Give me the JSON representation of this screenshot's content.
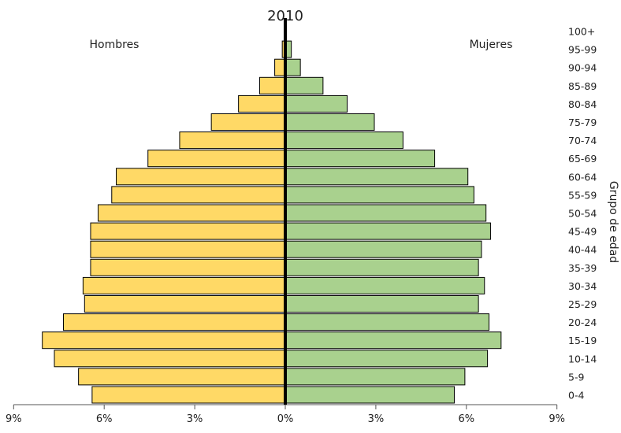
{
  "chart_data": {
    "type": "bar",
    "orientation": "horizontal",
    "subtype": "population-pyramid",
    "title": "2010",
    "ylabel": "Grupo de edad",
    "xlim": [
      -9,
      9
    ],
    "xticks": [
      -9,
      -6,
      -3,
      0,
      3,
      6,
      9
    ],
    "xtick_labels": [
      "9%",
      "6%",
      "3%",
      "0%",
      "3%",
      "6%",
      "9%"
    ],
    "categories": [
      "0-4",
      "5-9",
      "10-14",
      "15-19",
      "20-24",
      "25-29",
      "30-34",
      "35-39",
      "40-44",
      "45-49",
      "50-54",
      "55-59",
      "60-64",
      "65-69",
      "70-74",
      "75-79",
      "80-84",
      "85-89",
      "90-94",
      "95-99",
      "100+"
    ],
    "series": [
      {
        "name": "Hombres",
        "color": "#FFD966",
        "values": [
          6.4,
          6.85,
          7.65,
          8.05,
          7.35,
          6.65,
          6.7,
          6.45,
          6.45,
          6.45,
          6.2,
          5.75,
          5.6,
          4.55,
          3.5,
          2.45,
          1.55,
          0.85,
          0.35,
          0.1,
          0.0
        ]
      },
      {
        "name": "Mujeres",
        "color": "#A9D18E",
        "values": [
          5.6,
          5.95,
          6.7,
          7.15,
          6.75,
          6.4,
          6.6,
          6.4,
          6.5,
          6.8,
          6.65,
          6.25,
          6.05,
          4.95,
          3.9,
          2.95,
          2.05,
          1.25,
          0.5,
          0.2,
          0.0
        ]
      }
    ],
    "legend": "top-corners",
    "grid": false
  }
}
